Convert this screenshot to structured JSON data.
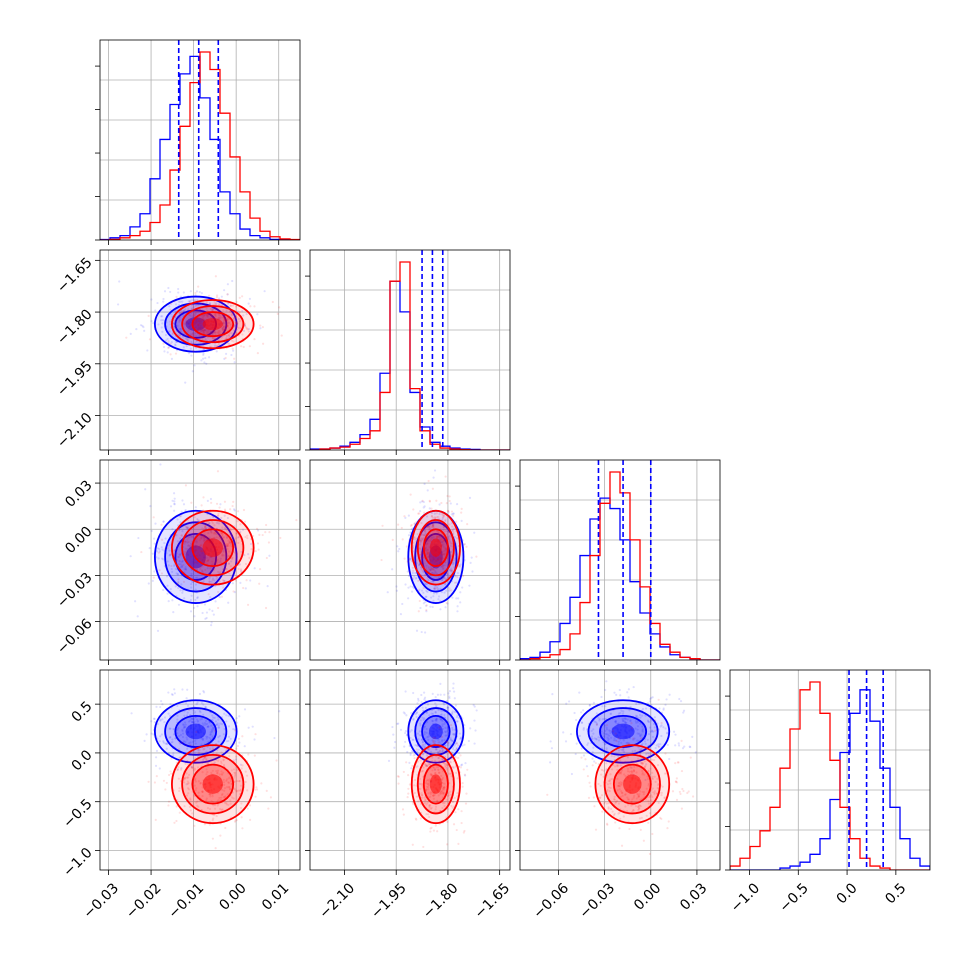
{
  "chart_data": {
    "type": "corner",
    "title": "",
    "grid": true,
    "colors": {
      "blue": "#0000ff",
      "red": "#ff0000",
      "frame": "#000000"
    },
    "axes_ranges": {
      "p1": [
        -0.032,
        0.015
      ],
      "p2": [
        -2.2,
        -1.62
      ],
      "p3": [
        -0.085,
        0.045
      ],
      "p4": [
        -1.2,
        0.85
      ]
    },
    "tick_labels": {
      "p1": [
        "−0.03",
        "−0.02",
        "−0.01",
        "0.00",
        "0.01"
      ],
      "p2": [
        "−2.10",
        "−1.95",
        "−1.80",
        "−1.65"
      ],
      "p3": [
        "−0.06",
        "−0.03",
        "0.00",
        "0.03"
      ],
      "p4": [
        "−1.0",
        "−0.5",
        "0.0",
        "0.5"
      ]
    },
    "ticks": {
      "p1": [
        -0.03,
        -0.02,
        -0.01,
        0.0,
        0.01
      ],
      "p2": [
        -2.1,
        -1.95,
        -1.8,
        -1.65
      ],
      "p3": [
        -0.06,
        -0.03,
        0.0,
        0.03
      ],
      "p4": [
        -1.0,
        -0.5,
        0.0,
        0.5
      ]
    },
    "quantiles": {
      "p1": [
        -0.0135,
        -0.0088,
        -0.0042
      ],
      "p2": [
        -1.875,
        -1.845,
        -1.815
      ],
      "p3": [
        -0.034,
        -0.018,
        0.0
      ],
      "p4": [
        0.02,
        0.2,
        0.37
      ]
    },
    "series": [
      {
        "name": "blue",
        "color": "#0000ff",
        "means": [
          -0.0095,
          -1.835,
          -0.018,
          0.22
        ],
        "stds": [
          0.0048,
          0.04,
          0.015,
          0.16
        ],
        "hist": {
          "p1": [
            0.2,
            1,
            2,
            6,
            12,
            28,
            46,
            62,
            76,
            84,
            65,
            46,
            22,
            12,
            5,
            2,
            1,
            0.3,
            0,
            0
          ],
          "p2": [
            0.5,
            0.5,
            1,
            2,
            4,
            8,
            16,
            40,
            88,
            72,
            30,
            12,
            4,
            2,
            1,
            0.5,
            0.3,
            0,
            0,
            0
          ],
          "p3": [
            0.5,
            1,
            3,
            7,
            14,
            24,
            40,
            54,
            62,
            58,
            46,
            30,
            18,
            10,
            5,
            2,
            1,
            0.5,
            0,
            0
          ],
          "p4": [
            0,
            0,
            0,
            0,
            0,
            0.5,
            1,
            2,
            4,
            8,
            18,
            30,
            40,
            46,
            38,
            26,
            16,
            8,
            3,
            1
          ]
        }
      },
      {
        "name": "red",
        "color": "#ff0000",
        "means": [
          -0.0055,
          -1.835,
          -0.012,
          -0.32
        ],
        "stds": [
          0.0048,
          0.035,
          0.012,
          0.2
        ],
        "hist": {
          "p1": [
            0,
            0.3,
            1,
            2,
            4,
            8,
            16,
            32,
            52,
            72,
            86,
            78,
            58,
            38,
            22,
            10,
            4,
            1.5,
            0.5,
            0.2
          ],
          "p2": [
            0,
            0.5,
            1,
            1.5,
            3,
            6,
            10,
            30,
            88,
            98,
            32,
            10,
            3,
            1,
            0.5,
            0.2,
            0,
            0,
            0,
            0
          ],
          "p3": [
            0,
            0.5,
            1,
            2,
            4,
            10,
            22,
            40,
            60,
            72,
            64,
            46,
            28,
            14,
            6,
            3,
            1,
            0.5,
            0,
            0
          ],
          "p4": [
            1,
            3,
            6,
            10,
            16,
            26,
            36,
            46,
            48,
            40,
            28,
            16,
            8,
            3,
            1,
            0.5,
            0,
            0,
            0,
            0
          ]
        }
      }
    ]
  }
}
